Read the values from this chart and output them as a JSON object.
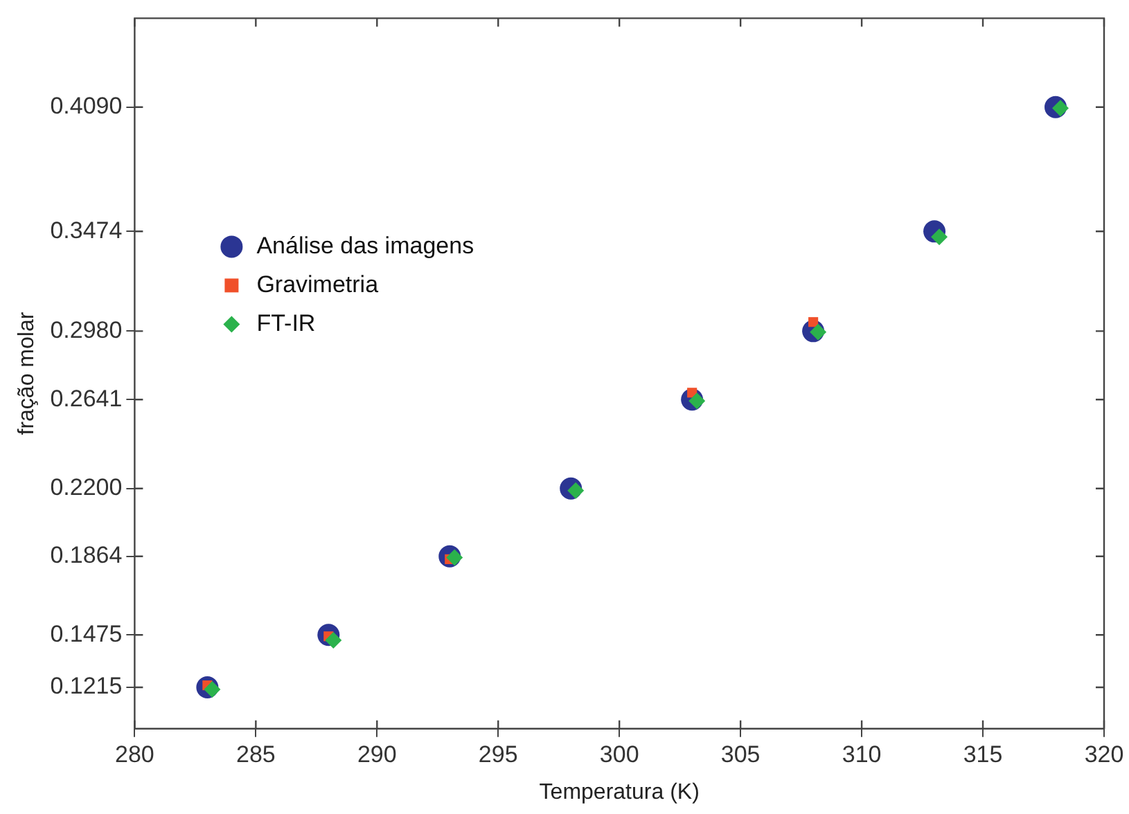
{
  "chart_data": {
    "type": "scatter",
    "xlabel": "Temperatura (K)",
    "ylabel": "fração molar",
    "xlim": [
      280,
      320
    ],
    "xticks": [
      280,
      285,
      290,
      295,
      300,
      305,
      310,
      315,
      320
    ],
    "ylim": [
      0.101,
      0.453
    ],
    "yticks": [
      {
        "value": 0.1215,
        "label": "0.1215"
      },
      {
        "value": 0.1475,
        "label": "0.1475"
      },
      {
        "value": 0.1864,
        "label": "0.1864"
      },
      {
        "value": 0.22,
        "label": "0.2200"
      },
      {
        "value": 0.2641,
        "label": "0.2641"
      },
      {
        "value": 0.298,
        "label": "0.2980"
      },
      {
        "value": 0.3474,
        "label": "0.3474"
      },
      {
        "value": 0.409,
        "label": "0.4090"
      }
    ],
    "grid": false,
    "legend": "left",
    "series": [
      {
        "name": "Análise das imagens",
        "color": "#2b3593",
        "marker": "circle",
        "x": [
          283,
          288,
          293,
          298,
          303,
          308,
          313,
          318
        ],
        "values": [
          0.1215,
          0.1475,
          0.1864,
          0.22,
          0.2641,
          0.298,
          0.3474,
          0.409
        ]
      },
      {
        "name": "Gravimetria",
        "color": "#f0502a",
        "marker": "square",
        "x": [
          283,
          288,
          293,
          null,
          303,
          308,
          null,
          null
        ],
        "values": [
          0.1225,
          0.1468,
          0.185,
          null,
          0.2675,
          0.3025,
          null,
          null
        ]
      },
      {
        "name": "FT-IR",
        "color": "#2bb24c",
        "marker": "diamond",
        "x": [
          283.2,
          288.2,
          293.2,
          298.2,
          303.2,
          308.2,
          313.2,
          318.2
        ],
        "values": [
          0.1205,
          0.1448,
          0.1858,
          0.219,
          0.2634,
          0.2975,
          0.3447,
          0.4085
        ]
      }
    ]
  }
}
